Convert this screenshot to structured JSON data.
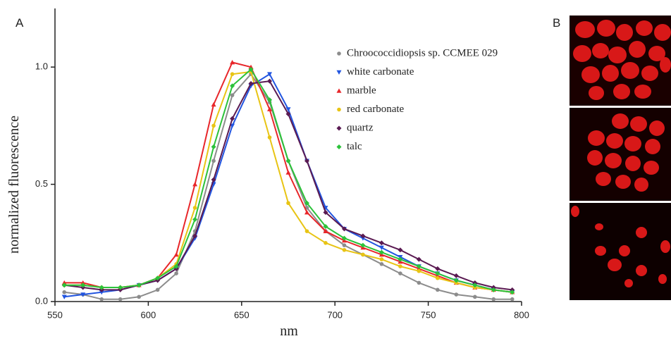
{
  "panels": {
    "a": "A",
    "b": "B"
  },
  "chart_data": {
    "type": "line",
    "xlabel": "nm",
    "ylabel": "normalized fluorescence",
    "xlim": [
      550,
      800
    ],
    "xticks": [
      550,
      600,
      650,
      700,
      750,
      800
    ],
    "ylim": [
      0,
      1.25
    ],
    "yticks": [
      {
        "value": 0,
        "label": "0.0"
      },
      0.5,
      {
        "value": 1,
        "label": "1.0"
      }
    ],
    "x": [
      555,
      565,
      575,
      585,
      595,
      605,
      615,
      625,
      635,
      645,
      655,
      665,
      675,
      685,
      695,
      705,
      715,
      725,
      735,
      745,
      755,
      765,
      775,
      785,
      795
    ],
    "series": [
      {
        "name": "Chroococcidiopsis sp. CCMEE 029",
        "color": "#8c8c8c",
        "marker": "circle",
        "values": [
          0.04,
          0.03,
          0.01,
          0.01,
          0.02,
          0.05,
          0.12,
          0.3,
          0.6,
          0.88,
          0.97,
          0.85,
          0.6,
          0.4,
          0.3,
          0.24,
          0.2,
          0.16,
          0.12,
          0.08,
          0.05,
          0.03,
          0.02,
          0.01,
          0.01
        ]
      },
      {
        "name": "white carbonate",
        "color": "#2255e0",
        "marker": "triangle-down",
        "values": [
          0.02,
          0.03,
          0.04,
          0.05,
          0.07,
          0.09,
          0.14,
          0.27,
          0.5,
          0.75,
          0.92,
          0.97,
          0.82,
          0.6,
          0.4,
          0.31,
          0.27,
          0.23,
          0.19,
          0.15,
          0.12,
          0.09,
          0.07,
          0.05,
          0.04
        ]
      },
      {
        "name": "marble",
        "color": "#e8262a",
        "marker": "triangle-up",
        "values": [
          0.08,
          0.08,
          0.06,
          0.06,
          0.07,
          0.1,
          0.2,
          0.5,
          0.84,
          1.02,
          1.0,
          0.82,
          0.55,
          0.38,
          0.3,
          0.26,
          0.23,
          0.2,
          0.17,
          0.14,
          0.11,
          0.08,
          0.06,
          0.05,
          0.04
        ]
      },
      {
        "name": "red carbonate",
        "color": "#e8c414",
        "marker": "circle",
        "values": [
          0.07,
          0.07,
          0.06,
          0.06,
          0.07,
          0.1,
          0.16,
          0.4,
          0.75,
          0.97,
          0.98,
          0.7,
          0.42,
          0.3,
          0.25,
          0.22,
          0.2,
          0.18,
          0.15,
          0.13,
          0.1,
          0.08,
          0.06,
          0.05,
          0.04
        ]
      },
      {
        "name": "quartz",
        "color": "#5a1a52",
        "marker": "diamond",
        "values": [
          0.07,
          0.06,
          0.05,
          0.05,
          0.07,
          0.09,
          0.14,
          0.28,
          0.52,
          0.78,
          0.93,
          0.94,
          0.8,
          0.6,
          0.38,
          0.31,
          0.28,
          0.25,
          0.22,
          0.18,
          0.14,
          0.11,
          0.08,
          0.06,
          0.05
        ]
      },
      {
        "name": "talc",
        "color": "#2cc23a",
        "marker": "diamond",
        "values": [
          0.07,
          0.07,
          0.06,
          0.06,
          0.07,
          0.1,
          0.15,
          0.35,
          0.66,
          0.92,
          0.99,
          0.86,
          0.6,
          0.42,
          0.32,
          0.27,
          0.24,
          0.21,
          0.18,
          0.15,
          0.12,
          0.09,
          0.07,
          0.05,
          0.04
        ]
      }
    ]
  }
}
